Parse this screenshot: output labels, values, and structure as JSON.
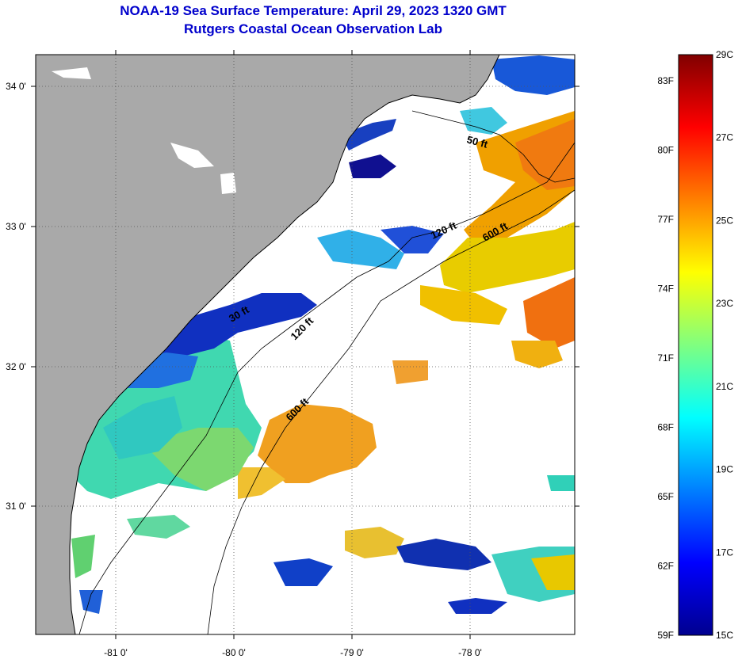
{
  "title": "NOAA-19 Sea Surface Temperature:  April 29, 2023 1320 GMT",
  "subtitle": "Rutgers Coastal Ocean Observation Lab",
  "map": {
    "lon_ticks": [
      "-81 0'",
      "-80 0'",
      "-79 0'",
      "-78 0'"
    ],
    "lat_ticks": [
      "34 0'",
      "33 0'",
      "32 0'",
      "31 0'"
    ],
    "contour_labels": [
      "50 ft",
      "120 ft",
      "600 ft",
      "120 ft",
      "600 ft",
      "30 ft"
    ],
    "colors": {
      "land": "#a9a9a9",
      "no_data": "#ffffff"
    }
  },
  "colorbar": {
    "fahrenheit": [
      "83F",
      "80F",
      "77F",
      "74F",
      "71F",
      "68F",
      "65F",
      "62F",
      "59F"
    ],
    "celsius": [
      "29C",
      "27C",
      "25C",
      "23C",
      "21C",
      "19C",
      "17C",
      "15C"
    ],
    "range_c": [
      15,
      29
    ]
  }
}
